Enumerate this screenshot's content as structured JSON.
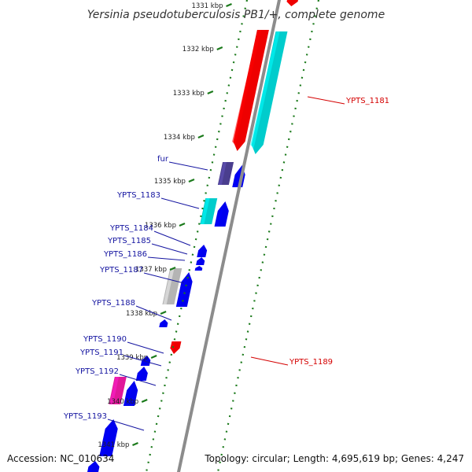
{
  "title": "Yersinia pseudotuberculosis PB1/+, complete genome",
  "footer": {
    "accession": "Accession: NC_010634",
    "summary": "Topology: circular; Length: 4,695,619 bp; Genes: 4,247"
  },
  "ticks": [
    "1331 kbp",
    "1332 kbp",
    "1333 kbp",
    "1334 kbp",
    "1335 kbp",
    "1336 kbp",
    "1337 kbp",
    "1338 kbp",
    "1339 kbp",
    "1340 kbp",
    "1341 kbp"
  ],
  "colors": {
    "blue": "#0000ee",
    "red": "#ee0000",
    "cyan": "#00cccc",
    "indigo": "#4a3e8e",
    "gray": "#b4b4b4",
    "magenta": "#e0189a",
    "backbone": "#8c8c8c",
    "tick": "#1b7a1b",
    "label_blue": "#1414a0",
    "label_red": "#d40000"
  },
  "labels": [
    {
      "name": "fur",
      "side": "left",
      "color": "label_blue"
    },
    {
      "name": "YPTS_1183",
      "side": "left",
      "color": "label_blue"
    },
    {
      "name": "YPTS_1184",
      "side": "left",
      "color": "label_blue"
    },
    {
      "name": "YPTS_1185",
      "side": "left",
      "color": "label_blue"
    },
    {
      "name": "YPTS_1186",
      "side": "left",
      "color": "label_blue"
    },
    {
      "name": "YPTS_1187",
      "side": "left",
      "color": "label_blue"
    },
    {
      "name": "YPTS_1188",
      "side": "left",
      "color": "label_blue"
    },
    {
      "name": "YPTS_1190",
      "side": "left",
      "color": "label_blue"
    },
    {
      "name": "YPTS_1191",
      "side": "left",
      "color": "label_blue"
    },
    {
      "name": "YPTS_1192",
      "side": "left",
      "color": "label_blue"
    },
    {
      "name": "YPTS_1193",
      "side": "left",
      "color": "label_blue"
    },
    {
      "name": "YPTS_1181",
      "side": "right",
      "color": "label_red"
    },
    {
      "name": "YPTS_1189",
      "side": "right",
      "color": "label_red"
    }
  ]
}
